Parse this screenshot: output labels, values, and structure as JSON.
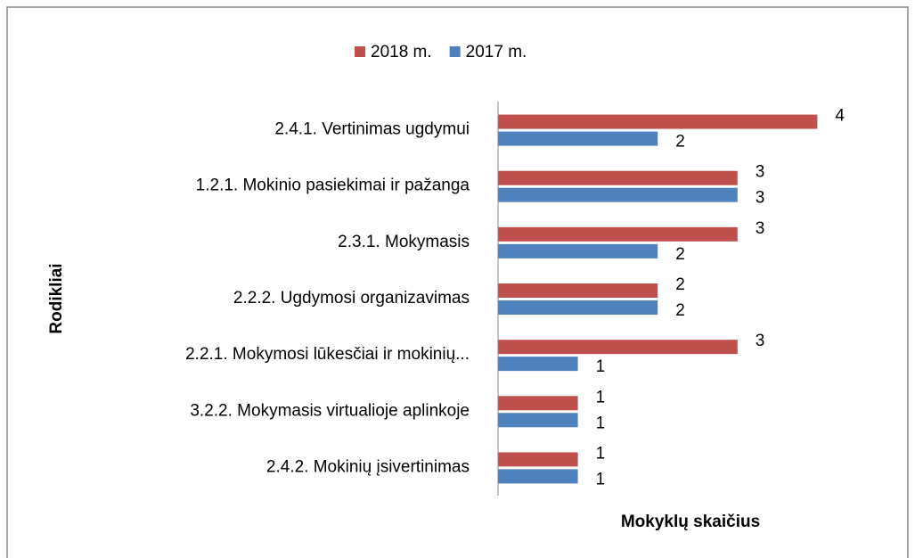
{
  "chart_data": {
    "type": "bar",
    "orientation": "horizontal",
    "x_label": "Mokyklų skaičius",
    "y_label": "Rodikliai",
    "categories": [
      "2.4.1. Vertinimas ugdymui",
      "1.2.1. Mokinio pasiekimai ir pažanga",
      "2.3.1. Mokymasis",
      "2.2.2. Ugdymosi organizavimas",
      "2.2.1. Mokymosi lūkesčiai ir mokinių...",
      "3.2.2. Mokymasis virtualioje aplinkoje",
      "2.4.2. Mokinių įsivertinimas"
    ],
    "series": [
      {
        "name": "2018 m.",
        "color": "#c0504d",
        "values": [
          4,
          3,
          3,
          2,
          3,
          1,
          1
        ]
      },
      {
        "name": "2017 m.",
        "color": "#4f81bd",
        "values": [
          2,
          3,
          2,
          2,
          1,
          1,
          1
        ]
      }
    ],
    "xlim": [
      0,
      5
    ],
    "legend": "top",
    "data_labels": true
  }
}
